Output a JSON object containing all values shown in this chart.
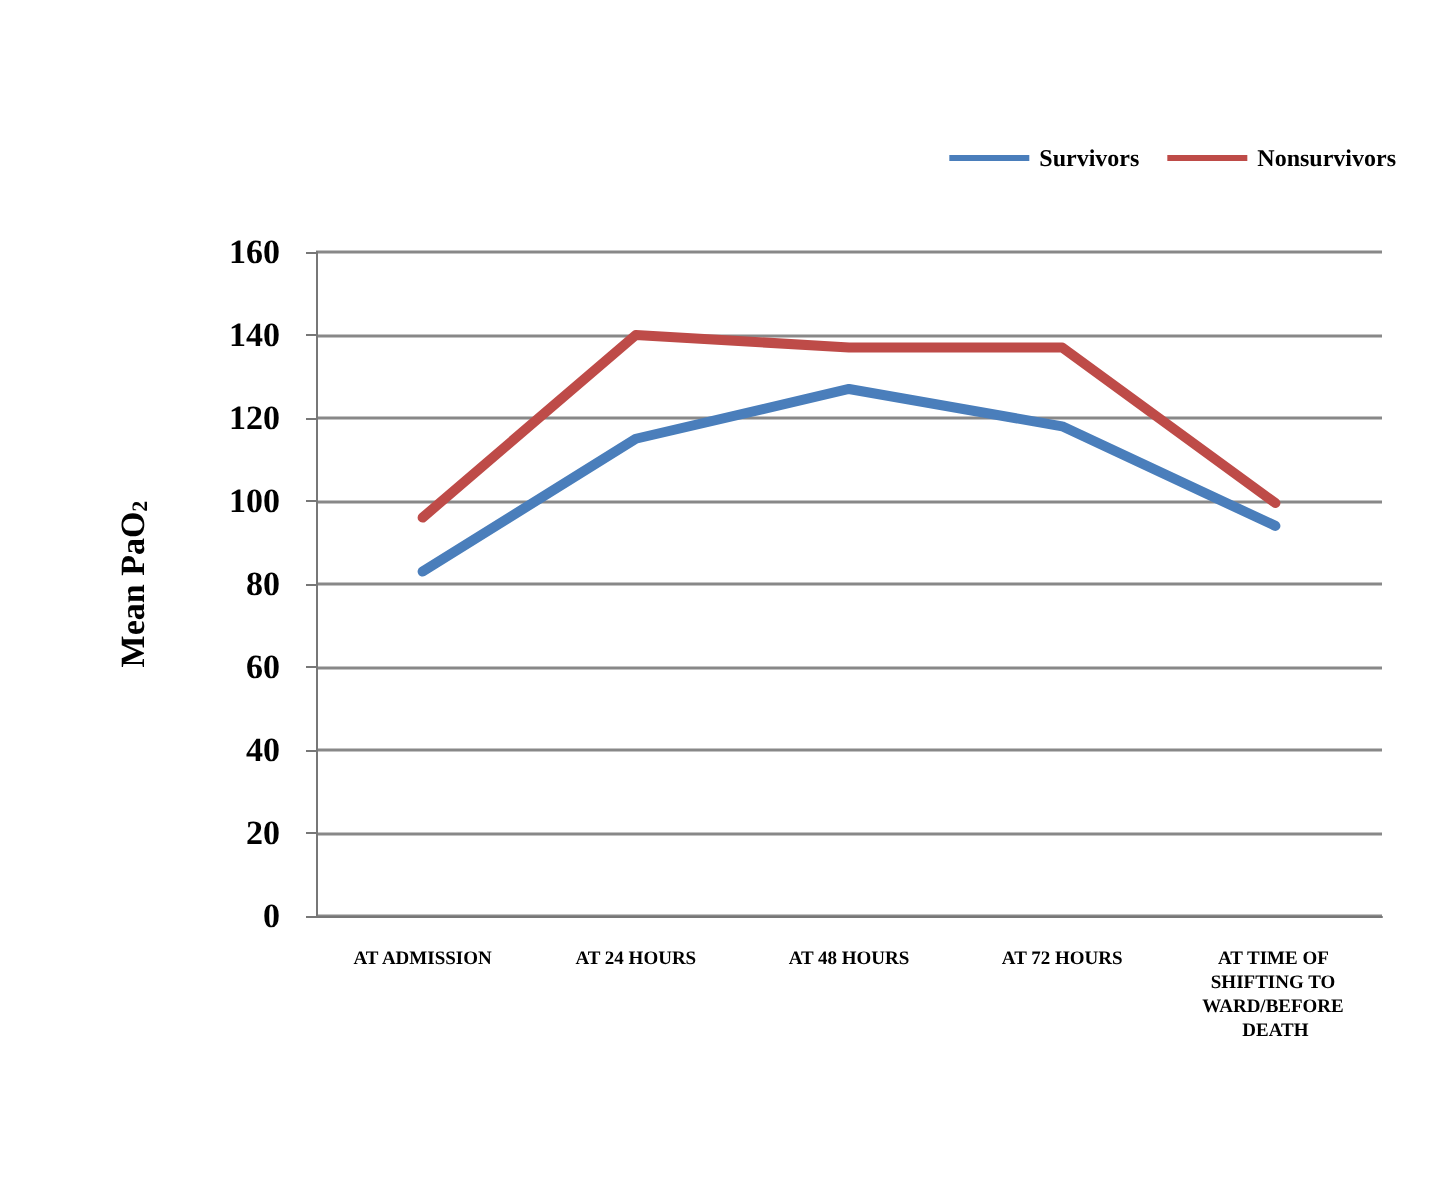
{
  "chart_data": {
    "type": "line",
    "ylabel": "Mean PaO$_{2}$",
    "categories": [
      "AT ADMISSION",
      "AT 24 HOURS",
      "AT 48 HOURS",
      "AT 72 HOURS",
      "AT TIME OF SHIFTING TO WARD/BEFORE DEATH"
    ],
    "series": [
      {
        "name": "Survivors",
        "color": "#4a7ebb",
        "values": [
          83,
          115,
          127,
          118,
          94
        ]
      },
      {
        "name": "Nonsurvivors",
        "color": "#be4b48",
        "values": [
          96,
          140,
          137,
          137,
          99.5
        ]
      }
    ],
    "ylim": [
      0,
      160
    ],
    "yticks": [
      0,
      20,
      40,
      60,
      80,
      100,
      120,
      140,
      160
    ],
    "grid": "y",
    "legend": "top right",
    "marker": "none",
    "line_style": "solid"
  }
}
